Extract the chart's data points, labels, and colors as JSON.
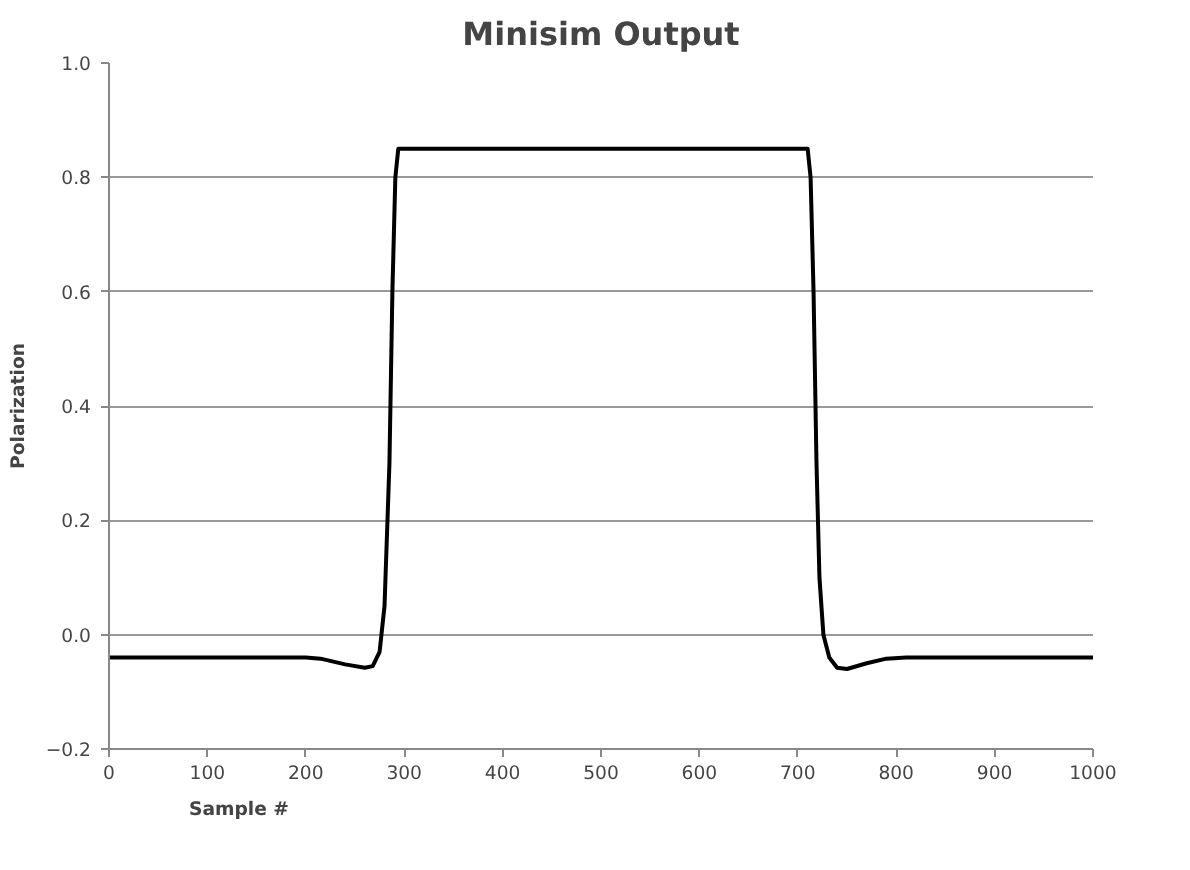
{
  "chart_data": {
    "type": "line",
    "title": "Minisim Output",
    "xlabel": "Sample #",
    "ylabel": "Polarization",
    "x": [
      0,
      200,
      215,
      240,
      260,
      268,
      275,
      280,
      285,
      288,
      291,
      294,
      710,
      713,
      716,
      719,
      722,
      726,
      732,
      740,
      750,
      770,
      790,
      810,
      1000
    ],
    "series": [
      {
        "color": "#000000",
        "values": [
          -0.04,
          -0.04,
          -0.042,
          -0.052,
          -0.058,
          -0.055,
          -0.03,
          0.05,
          0.3,
          0.6,
          0.8,
          0.85,
          0.85,
          0.8,
          0.6,
          0.3,
          0.1,
          0.0,
          -0.04,
          -0.058,
          -0.06,
          -0.05,
          -0.042,
          -0.04,
          -0.04
        ]
      }
    ],
    "xlim": [
      0,
      1000
    ],
    "xticks": [
      0,
      100,
      200,
      300,
      400,
      500,
      600,
      700,
      800,
      900,
      1000
    ],
    "ylim": [
      -0.2,
      1.0
    ],
    "yticks": [
      {
        "value": -0.2,
        "label": "−0.2"
      },
      {
        "value": 0,
        "label": "0.0"
      },
      {
        "value": 0.2,
        "label": "0.2"
      },
      {
        "value": 0.4,
        "label": "0.4"
      },
      {
        "value": 0.6,
        "label": "0.6"
      },
      {
        "value": 0.8,
        "label": "0.8"
      },
      {
        "value": 1.0,
        "label": "1.0"
      }
    ],
    "grid": "y",
    "marker": "none",
    "line_style": "solid"
  }
}
